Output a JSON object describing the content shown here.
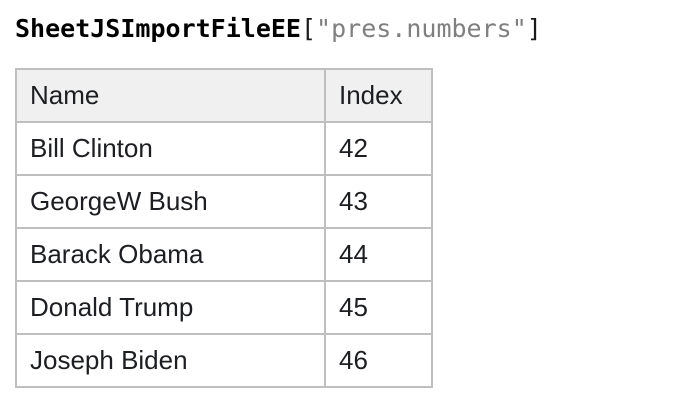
{
  "title": {
    "variable": "SheetJSImportFileEE",
    "open_bracket": "[",
    "key_string": "\"pres.numbers\"",
    "close_bracket": "]"
  },
  "table": {
    "headers": [
      "Name",
      "Index"
    ],
    "rows": [
      [
        "Bill Clinton",
        "42"
      ],
      [
        "GeorgeW Bush",
        "43"
      ],
      [
        "Barack Obama",
        "44"
      ],
      [
        "Donald Trump",
        "45"
      ],
      [
        "Joseph Biden",
        "46"
      ]
    ]
  },
  "colors": {
    "title_text": "#000000",
    "title_string_text": "#7f7f7f",
    "table_border": "#bfbfbf",
    "header_background": "#f0f0f0",
    "row_background": "#ffffff",
    "body_text": "#1c1e21",
    "page_background": "#ffffff"
  }
}
